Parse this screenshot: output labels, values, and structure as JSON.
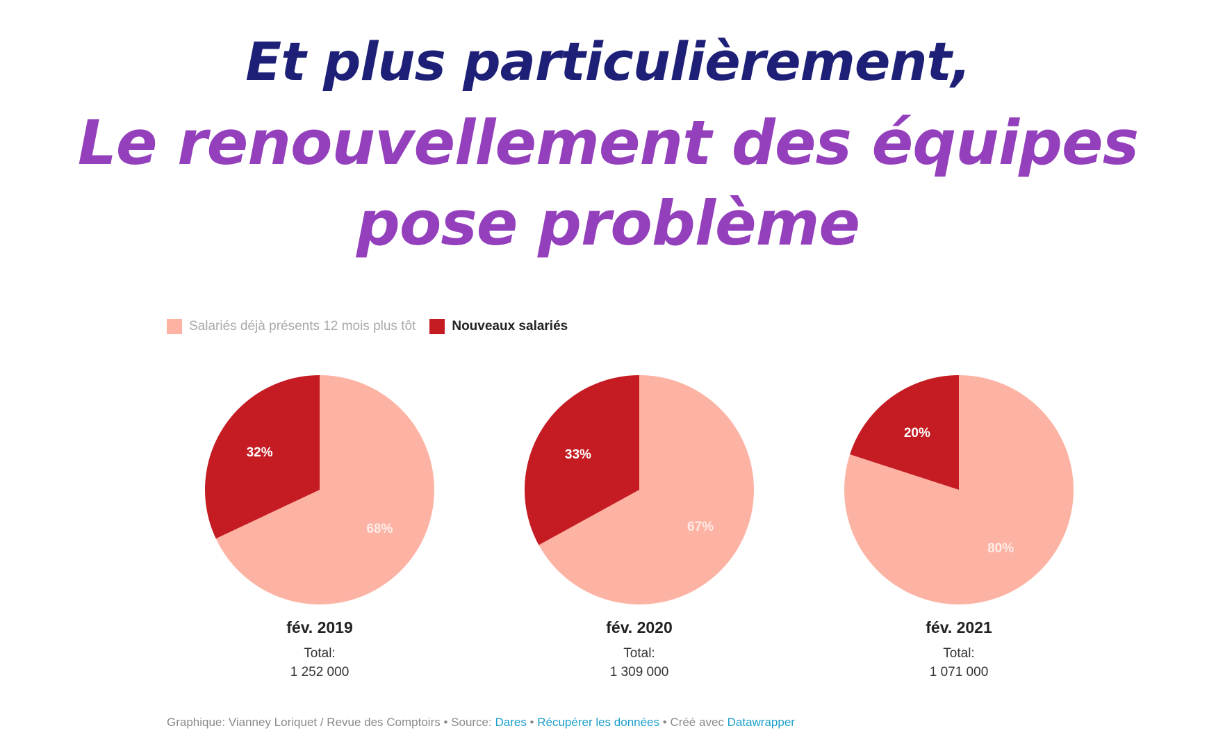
{
  "title": {
    "line1": "Et plus particulièrement,",
    "line2": "Le renouvellement des équipes",
    "line3": "pose problème"
  },
  "colors": {
    "title_dark": "#1e2078",
    "title_purple": "#9440bd",
    "existing": "#fdb3a3",
    "new": "#c41c22",
    "link": "#1a9fc9"
  },
  "chart_data": {
    "type": "pie",
    "legend_position": "top-left",
    "legend": [
      {
        "label": "Salariés déjà présents 12 mois plus tôt",
        "color": "#fdb3a3"
      },
      {
        "label": "Nouveaux salariés",
        "color": "#c41c22"
      }
    ],
    "charts": [
      {
        "title": "fév. 2019",
        "total_label": "Total:",
        "total_value": "1 252 000",
        "slices": [
          {
            "series": "Salariés déjà présents 12 mois plus tôt",
            "value": 68,
            "label": "68%"
          },
          {
            "series": "Nouveaux salariés",
            "value": 32,
            "label": "32%"
          }
        ]
      },
      {
        "title": "fév. 2020",
        "total_label": "Total:",
        "total_value": "1 309 000",
        "slices": [
          {
            "series": "Salariés déjà présents 12 mois plus tôt",
            "value": 67,
            "label": "67%"
          },
          {
            "series": "Nouveaux salariés",
            "value": 33,
            "label": "33%"
          }
        ]
      },
      {
        "title": "fév. 2021",
        "total_label": "Total:",
        "total_value": "1 071 000",
        "slices": [
          {
            "series": "Salariés déjà présents 12 mois plus tôt",
            "value": 80,
            "label": "80%"
          },
          {
            "series": "Nouveaux salariés",
            "value": 20,
            "label": "20%"
          }
        ]
      }
    ]
  },
  "footer": {
    "prefix": "Graphique: Vianney Loriquet / Revue des Comptoirs • Source: ",
    "source_link": "Dares",
    "sep1": " • ",
    "data_link": "Récupérer les données",
    "sep2": " • Créé avec ",
    "tool_link": "Datawrapper"
  }
}
